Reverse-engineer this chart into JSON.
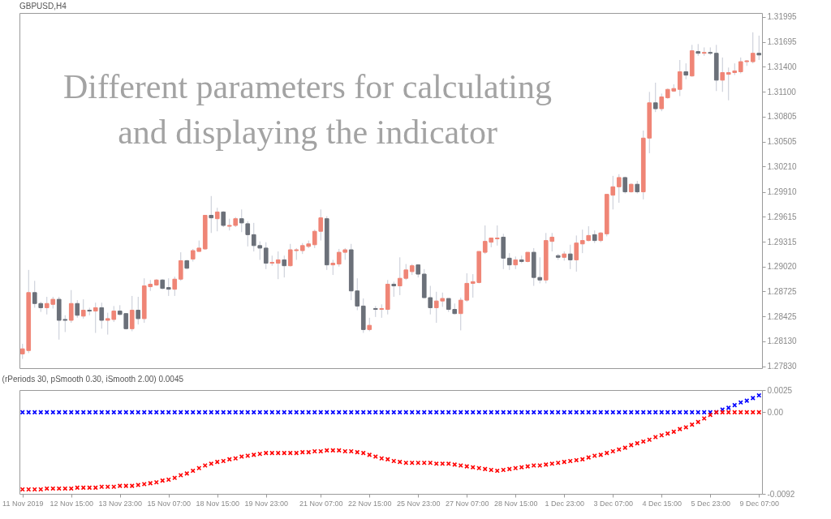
{
  "chart_data": [
    {
      "type": "candlestick",
      "title": "GBPUSD,H4",
      "annotations": [
        "Different parameters for calculating and displaying the indicator"
      ],
      "colors": [
        "#ef8576",
        "#ef8576",
        "#6b7079",
        "#6b7079",
        "#ef8576",
        "#ef8576",
        "#6b7079",
        "#6b7079",
        "#ef8576",
        "#6b7079",
        "#ef8576",
        "#6b7079",
        "#ef8576",
        "#6b7079",
        "#ef8576",
        "#ef8576",
        "#6b7079",
        "#6b7079",
        "#ef8576",
        "#6b7079",
        "#ef8576",
        "#ef8576",
        "#ef8576",
        "#6b7079",
        "#6b7079",
        "#ef8576",
        "#ef8576",
        "#6b7079",
        "#ef8576",
        "#ef8576",
        "#ef8576",
        "#6b7079",
        "#ef8576",
        "#6b7079",
        "#ef8576",
        "#ef8576",
        "#6b7079",
        "#6b7079",
        "#6b7079",
        "#6b7079",
        "#6b7079",
        "#ef8576",
        "#ef8576",
        "#6b7079",
        "#ef8576",
        "#ef8576",
        "#ef8576",
        "#ef8576",
        "#ef8576",
        "#ef8576",
        "#6b7079",
        "#ef8576",
        "#ef8576",
        "#ef8576",
        "#6b7079",
        "#6b7079",
        "#6b7079",
        "#ef8576",
        "#6b7079",
        "#ef8576",
        "#ef8576",
        "#6b7079",
        "#ef8576",
        "#ef8576",
        "#ef8576",
        "#6b7079",
        "#6b7079",
        "#6b7079",
        "#ef8576",
        "#ef8576",
        "#6b7079",
        "#6b7079",
        "#ef8576",
        "#ef8576",
        "#ef8576",
        "#ef8576",
        "#ef8576",
        "#ef8576",
        "#ef8576",
        "#6b7079",
        "#6b7079",
        "#ef8576",
        "#6b7079",
        "#ef8576",
        "#6b7079",
        "#6b7079",
        "#ef8576",
        "#ef8576",
        "#6b7079",
        "#ef8576",
        "#6b7079",
        "#ef8576",
        "#ef8576",
        "#ef8576",
        "#6b7079",
        "#ef8576",
        "#ef8576",
        "#ef8576",
        "#ef8576",
        "#6b7079",
        "#ef8576",
        "#6b7079",
        "#ef8576",
        "#ef8576",
        "#6b7079",
        "#ef8576",
        "#ef8576",
        "#ef8576",
        "#ef8576",
        "#6b7079",
        "#ef8576",
        "#6b7079",
        "#ef8576",
        "#6b7079",
        "#6b7079",
        "#ef8576",
        "#ef8576",
        "#ef8576",
        "#ef8576",
        "#ef8576",
        "#ef8576",
        "#6b7079"
      ],
      "ohlc": [
        [
          1.2798,
          1.281,
          1.2792,
          1.2804
        ],
        [
          1.2802,
          1.2898,
          1.2799,
          1.2871
        ],
        [
          1.2871,
          1.2885,
          1.2853,
          1.2858
        ],
        [
          1.2858,
          1.286,
          1.2848,
          1.2853
        ],
        [
          1.2853,
          1.2866,
          1.2845,
          1.2858
        ],
        [
          1.2857,
          1.2866,
          1.2852,
          1.2863
        ],
        [
          1.2863,
          1.2866,
          1.2815,
          1.2838
        ],
        [
          1.2839,
          1.2844,
          1.2824,
          1.2838
        ],
        [
          1.2838,
          1.2874,
          1.2835,
          1.2858
        ],
        [
          1.2858,
          1.2862,
          1.2841,
          1.2844
        ],
        [
          1.2843,
          1.2863,
          1.284,
          1.285
        ],
        [
          1.285,
          1.2853,
          1.2844,
          1.2849
        ],
        [
          1.2849,
          1.2859,
          1.2823,
          1.2853
        ],
        [
          1.2853,
          1.2859,
          1.2828,
          1.2838
        ],
        [
          1.2838,
          1.2847,
          1.2821,
          1.284
        ],
        [
          1.2839,
          1.2855,
          1.2836,
          1.2849
        ],
        [
          1.2849,
          1.2856,
          1.2844,
          1.2845
        ],
        [
          1.2846,
          1.2846,
          1.2827,
          1.2828
        ],
        [
          1.2828,
          1.2867,
          1.2825,
          1.285
        ],
        [
          1.285,
          1.2866,
          1.2833,
          1.284
        ],
        [
          1.284,
          1.2888,
          1.2835,
          1.2879
        ],
        [
          1.2878,
          1.2886,
          1.2873,
          1.2881
        ],
        [
          1.288,
          1.2887,
          1.2879,
          1.2886
        ],
        [
          1.2886,
          1.2887,
          1.2875,
          1.2876
        ],
        [
          1.2877,
          1.2888,
          1.2867,
          1.2875
        ],
        [
          1.2875,
          1.289,
          1.2867,
          1.2887
        ],
        [
          1.2887,
          1.2919,
          1.2885,
          1.2909
        ],
        [
          1.2909,
          1.291,
          1.2899,
          1.29
        ],
        [
          1.2911,
          1.2923,
          1.2908,
          1.2921
        ],
        [
          1.292,
          1.2933,
          1.292,
          1.2924
        ],
        [
          1.2923,
          1.2963,
          1.2922,
          1.2963
        ],
        [
          1.2963,
          1.2986,
          1.2942,
          1.296
        ],
        [
          1.2959,
          1.2972,
          1.2944,
          1.2967
        ],
        [
          1.2967,
          1.2968,
          1.2949,
          1.2951
        ],
        [
          1.295,
          1.2959,
          1.2945,
          1.2951
        ],
        [
          1.2951,
          1.2961,
          1.2949,
          1.2959
        ],
        [
          1.2959,
          1.297,
          1.2943,
          1.2954
        ],
        [
          1.2953,
          1.2956,
          1.2926,
          1.294
        ],
        [
          1.294,
          1.2954,
          1.292,
          1.2927
        ],
        [
          1.2927,
          1.2932,
          1.291,
          1.2924
        ],
        [
          1.2924,
          1.2931,
          1.2899,
          1.2906
        ],
        [
          1.2906,
          1.2915,
          1.2903,
          1.2907
        ],
        [
          1.2906,
          1.292,
          1.2887,
          1.291
        ],
        [
          1.291,
          1.2915,
          1.2889,
          1.2903
        ],
        [
          1.2903,
          1.2929,
          1.2902,
          1.2922
        ],
        [
          1.2921,
          1.2924,
          1.291,
          1.2922
        ],
        [
          1.2921,
          1.293,
          1.2917,
          1.2927
        ],
        [
          1.2926,
          1.2933,
          1.2924,
          1.2929
        ],
        [
          1.2928,
          1.2946,
          1.2924,
          1.2944
        ],
        [
          1.2944,
          1.297,
          1.2933,
          1.296
        ],
        [
          1.2959,
          1.2962,
          1.2898,
          1.2904
        ],
        [
          1.2904,
          1.291,
          1.2892,
          1.2906
        ],
        [
          1.2905,
          1.2923,
          1.2902,
          1.2919
        ],
        [
          1.2919,
          1.2924,
          1.291,
          1.2922
        ],
        [
          1.2922,
          1.2929,
          1.2862,
          1.2873
        ],
        [
          1.2873,
          1.2888,
          1.285,
          1.2855
        ],
        [
          1.2855,
          1.2864,
          1.2823,
          1.2827
        ],
        [
          1.2827,
          1.2841,
          1.2825,
          1.2832
        ],
        [
          1.2852,
          1.2855,
          1.2842,
          1.2851
        ],
        [
          1.2851,
          1.2857,
          1.2841,
          1.2852
        ],
        [
          1.2851,
          1.2886,
          1.2845,
          1.2881
        ],
        [
          1.2881,
          1.2884,
          1.2866,
          1.2879
        ],
        [
          1.2879,
          1.2913,
          1.2868,
          1.2888
        ],
        [
          1.2888,
          1.2905,
          1.2886,
          1.2898
        ],
        [
          1.2896,
          1.2905,
          1.2892,
          1.2903
        ],
        [
          1.2904,
          1.2904,
          1.2889,
          1.2893
        ],
        [
          1.2893,
          1.2899,
          1.2864,
          1.2865
        ],
        [
          1.2865,
          1.2879,
          1.2845,
          1.2853
        ],
        [
          1.2853,
          1.2872,
          1.2835,
          1.2861
        ],
        [
          1.2861,
          1.2871,
          1.2854,
          1.2864
        ],
        [
          1.2864,
          1.2864,
          1.2848,
          1.2851
        ],
        [
          1.2851,
          1.2858,
          1.2845,
          1.2846
        ],
        [
          1.2846,
          1.2865,
          1.2826,
          1.2862
        ],
        [
          1.2862,
          1.2894,
          1.286,
          1.2882
        ],
        [
          1.2882,
          1.2893,
          1.2865,
          1.2884
        ],
        [
          1.2883,
          1.292,
          1.2882,
          1.292
        ],
        [
          1.2919,
          1.2951,
          1.2917,
          1.2932
        ],
        [
          1.2931,
          1.2936,
          1.2925,
          1.2936
        ],
        [
          1.2935,
          1.2951,
          1.2927,
          1.2936
        ],
        [
          1.2937,
          1.2941,
          1.2899,
          1.2912
        ],
        [
          1.2912,
          1.2918,
          1.2898,
          1.2904
        ],
        [
          1.2904,
          1.2914,
          1.2899,
          1.291
        ],
        [
          1.291,
          1.2915,
          1.2906,
          1.2908
        ],
        [
          1.2908,
          1.2919,
          1.2907,
          1.2919
        ],
        [
          1.2919,
          1.2924,
          1.2879,
          1.2889
        ],
        [
          1.2889,
          1.2913,
          1.2882,
          1.2886
        ],
        [
          1.2886,
          1.2942,
          1.2882,
          1.2933
        ],
        [
          1.2932,
          1.2942,
          1.292,
          1.2937
        ],
        [
          1.2915,
          1.2917,
          1.291,
          1.2913
        ],
        [
          1.2913,
          1.292,
          1.2909,
          1.2917
        ],
        [
          1.2917,
          1.2928,
          1.2899,
          1.291
        ],
        [
          1.291,
          1.2939,
          1.2896,
          1.293
        ],
        [
          1.2929,
          1.2946,
          1.2918,
          1.2933
        ],
        [
          1.2933,
          1.295,
          1.2932,
          1.2939
        ],
        [
          1.294,
          1.2945,
          1.293,
          1.2933
        ],
        [
          1.2933,
          1.2943,
          1.2931,
          1.2942
        ],
        [
          1.2941,
          1.2988,
          1.2938,
          1.2988
        ],
        [
          1.2987,
          1.301,
          1.297,
          1.2997
        ],
        [
          1.2997,
          1.3012,
          1.2978,
          1.3008
        ],
        [
          1.3008,
          1.3009,
          1.2989,
          1.2991
        ],
        [
          1.2991,
          1.3001,
          1.299,
          1.3
        ],
        [
          1.3,
          1.3004,
          1.2989,
          1.2991
        ],
        [
          1.2991,
          1.3064,
          1.2982,
          1.3055
        ],
        [
          1.3055,
          1.311,
          1.3037,
          1.3097
        ],
        [
          1.3097,
          1.3121,
          1.3086,
          1.309
        ],
        [
          1.309,
          1.3108,
          1.3087,
          1.3104
        ],
        [
          1.3103,
          1.3114,
          1.3102,
          1.3113
        ],
        [
          1.3111,
          1.3119,
          1.311,
          1.3114
        ],
        [
          1.3113,
          1.3148,
          1.3105,
          1.3134
        ],
        [
          1.3134,
          1.3144,
          1.3125,
          1.313
        ],
        [
          1.3129,
          1.3166,
          1.3128,
          1.3159
        ],
        [
          1.3158,
          1.3167,
          1.3153,
          1.3156
        ],
        [
          1.3156,
          1.3163,
          1.3153,
          1.3157
        ],
        [
          1.3157,
          1.3163,
          1.3154,
          1.3156
        ],
        [
          1.3156,
          1.3166,
          1.3111,
          1.3124
        ],
        [
          1.3124,
          1.3151,
          1.311,
          1.3133
        ],
        [
          1.3131,
          1.3139,
          1.31,
          1.3133
        ],
        [
          1.3133,
          1.3144,
          1.313,
          1.3135
        ],
        [
          1.3134,
          1.3151,
          1.3132,
          1.3146
        ],
        [
          1.3146,
          1.3148,
          1.3141,
          1.3147
        ],
        [
          1.3146,
          1.3181,
          1.3144,
          1.3156
        ],
        [
          1.3156,
          1.3177,
          1.3148,
          1.3154
        ]
      ],
      "ylim": [
        1.2781,
        1.3204
      ],
      "yticks": [
        1.31995,
        1.31695,
        {
          "value": 1.314,
          "label": "1.31400"
        },
        {
          "value": 1.311,
          "label": "1.31100"
        },
        1.30805,
        1.30505,
        {
          "value": 1.3021,
          "label": "1.30210"
        },
        {
          "value": 1.2991,
          "label": "1.29910"
        },
        1.29615,
        1.29315,
        {
          "value": 1.2902,
          "label": "1.29020"
        },
        1.28725,
        1.28425,
        {
          "value": 1.2813,
          "label": "1.28130"
        },
        {
          "value": 1.2783,
          "label": "1.27830"
        }
      ],
      "tick_labels": "y",
      "grid": false
    },
    {
      "type": "scatter",
      "title": "(rPeriods 30, pSmooth 0.30, iSmooth 2.00)  0.0045",
      "marker": "cross",
      "grid": false,
      "categories": [
        "11 Nov 2019",
        null,
        null,
        null,
        null,
        null,
        null,
        null,
        "12 Nov 15:00",
        null,
        null,
        null,
        null,
        null,
        null,
        null,
        "13 Nov 23:00",
        null,
        null,
        null,
        null,
        null,
        null,
        null,
        "15 Nov 07:00",
        null,
        null,
        null,
        null,
        null,
        null,
        null,
        "18 Nov 15:00",
        null,
        null,
        null,
        null,
        null,
        null,
        null,
        "19 Nov 23:00",
        null,
        null,
        null,
        null,
        null,
        null,
        null,
        null,
        "21 Nov 07:00",
        null,
        null,
        null,
        null,
        null,
        null,
        null,
        "22 Nov 15:00",
        null,
        null,
        null,
        null,
        null,
        null,
        null,
        "25 Nov 23:00",
        null,
        null,
        null,
        null,
        null,
        null,
        null,
        "27 Nov 07:00",
        null,
        null,
        null,
        null,
        null,
        null,
        null,
        "28 Nov 15:00",
        null,
        null,
        null,
        null,
        null,
        null,
        null,
        "1 Dec 23:00",
        null,
        null,
        null,
        null,
        null,
        null,
        null,
        "3 Dec 07:00",
        null,
        null,
        null,
        null,
        null,
        null,
        null,
        "4 Dec 15:00",
        null,
        null,
        null,
        null,
        null,
        null,
        null,
        "5 Dec 23:00",
        null,
        null,
        null,
        null,
        null,
        null,
        null,
        "9 Dec 07:00"
      ],
      "series": [
        {
          "color": "#0000ff",
          "values": [
            0,
            0,
            0,
            0,
            0,
            0,
            0,
            0,
            0,
            0,
            0,
            0,
            0,
            0,
            0,
            0,
            0,
            0,
            0,
            0,
            0,
            0,
            0,
            0,
            0,
            0,
            0,
            0,
            0,
            0,
            0,
            0,
            0,
            0,
            0,
            0,
            0,
            0,
            0,
            0,
            0,
            0,
            0,
            0,
            0,
            0,
            0,
            0,
            0,
            0,
            0,
            0,
            0,
            0,
            0,
            0,
            0,
            0,
            0,
            0,
            0,
            0,
            0,
            0,
            0,
            0,
            0,
            0,
            0,
            0,
            0,
            0,
            0,
            0,
            0,
            0,
            0,
            0,
            0,
            0,
            0,
            0,
            0,
            0,
            0,
            0,
            0,
            0,
            0,
            0,
            0,
            0,
            0,
            0,
            0,
            0,
            0,
            0,
            0,
            0,
            0,
            0,
            0,
            0,
            0,
            0,
            0,
            0,
            0,
            0,
            0,
            0,
            0,
            0,
            0,
            0.0003,
            0.0005,
            0.0008,
            0.0011,
            0.0013,
            0.0016,
            0.0019
          ]
        },
        {
          "color": "#ff0000",
          "values": [
            -0.0087,
            -0.0087,
            -0.0087,
            -0.0087,
            -0.0086,
            -0.0086,
            -0.0086,
            -0.0086,
            -0.0086,
            -0.0085,
            -0.0085,
            -0.0085,
            -0.0085,
            -0.0084,
            -0.0084,
            -0.0084,
            -0.0083,
            -0.0083,
            -0.0083,
            -0.0082,
            -0.0081,
            -0.008,
            -0.0079,
            -0.0077,
            -0.0076,
            -0.0074,
            -0.0071,
            -0.0069,
            -0.0066,
            -0.0063,
            -0.006,
            -0.0058,
            -0.0056,
            -0.0055,
            -0.0053,
            -0.0052,
            -0.005,
            -0.0049,
            -0.0048,
            -0.0047,
            -0.0046,
            -0.0046,
            -0.0046,
            -0.0046,
            -0.0046,
            -0.0046,
            -0.0045,
            -0.0045,
            -0.0044,
            -0.0044,
            -0.0043,
            -0.0043,
            -0.0043,
            -0.0044,
            -0.0044,
            -0.0045,
            -0.0046,
            -0.0048,
            -0.005,
            -0.0052,
            -0.0053,
            -0.0055,
            -0.0056,
            -0.0057,
            -0.0057,
            -0.0057,
            -0.0057,
            -0.0057,
            -0.0058,
            -0.0058,
            -0.0058,
            -0.0059,
            -0.006,
            -0.0061,
            -0.0062,
            -0.0063,
            -0.0064,
            -0.0065,
            -0.0066,
            -0.0065,
            -0.0064,
            -0.0063,
            -0.0062,
            -0.0061,
            -0.006,
            -0.006,
            -0.0059,
            -0.0058,
            -0.0057,
            -0.0056,
            -0.0055,
            -0.0054,
            -0.0053,
            -0.0051,
            -0.0049,
            -0.0048,
            -0.0046,
            -0.0044,
            -0.0042,
            -0.004,
            -0.0037,
            -0.0035,
            -0.0033,
            -0.0031,
            -0.0028,
            -0.0026,
            -0.0024,
            -0.0022,
            -0.0019,
            -0.0017,
            -0.0014,
            -0.0011,
            -0.0007,
            -0.0003,
            0,
            0,
            0,
            0,
            0,
            0,
            0,
            0
          ]
        }
      ],
      "ylim": [
        -0.0092,
        0.0025
      ],
      "yticks": [
        0.0025,
        {
          "value": 0,
          "label": "0.00"
        },
        -0.0092
      ]
    }
  ]
}
